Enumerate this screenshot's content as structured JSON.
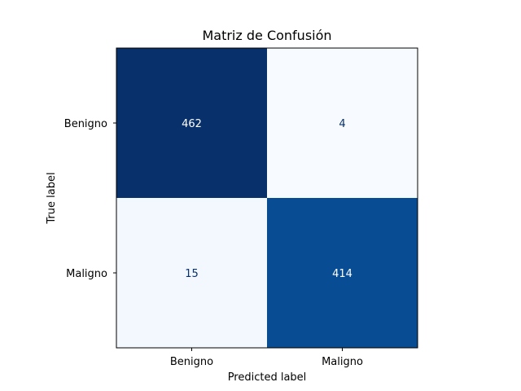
{
  "chart_data": {
    "type": "heatmap",
    "title": "Matriz de Confusión",
    "xlabel": "Predicted label",
    "ylabel": "True label",
    "x_categories": [
      "Benigno",
      "Maligno"
    ],
    "y_categories": [
      "Benigno",
      "Maligno"
    ],
    "values": [
      [
        462,
        4
      ],
      [
        15,
        414
      ]
    ],
    "colormap": "Blues",
    "colors": {
      "low": "#f7fbff",
      "high": "#08306b",
      "text_light": "#ffffff",
      "text_dark": "#08306b"
    }
  }
}
